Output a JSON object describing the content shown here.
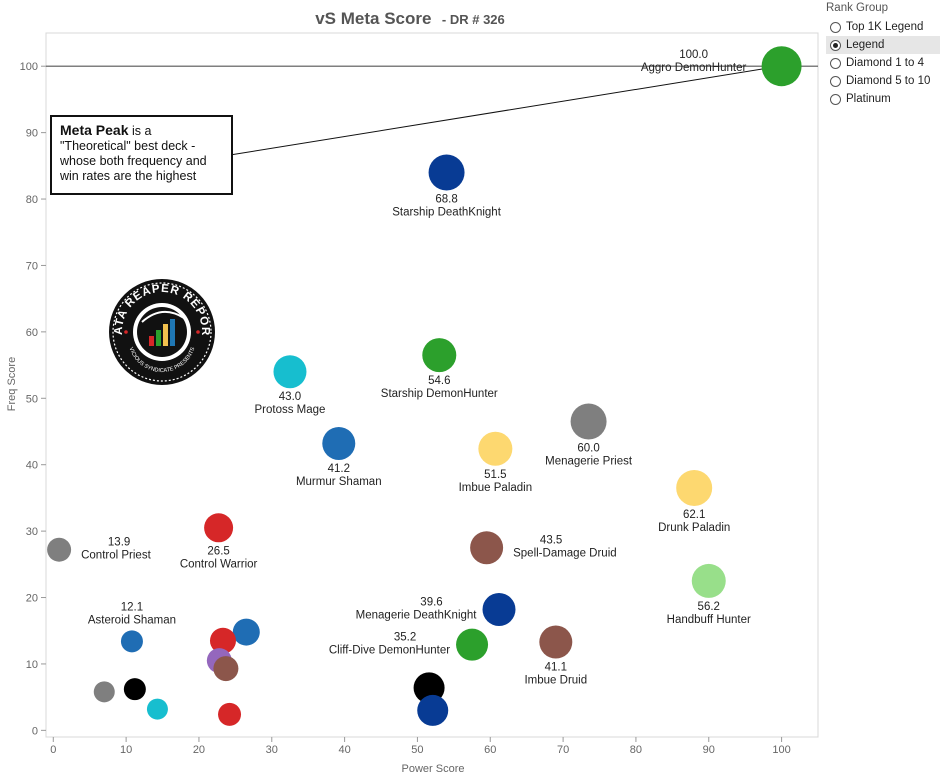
{
  "title": "vS Meta Score",
  "subtitle": "- DR # 326",
  "legend": {
    "title": "Rank Group",
    "items": [
      "Top 1K Legend",
      "Legend",
      "Diamond 1 to 4",
      "Diamond 5 to 10",
      "Platinum"
    ],
    "selected_index": 1
  },
  "annotation": {
    "bold": "Meta Peak",
    "text": " is a \"Theoretical\" best deck - whose both frequency and win rates are the highest"
  },
  "logo": {
    "text_top": "DATA REAPER REPORT",
    "text_bottom": "VICIOUS SYNDICATE PRESENTS"
  },
  "chart_data": {
    "type": "scatter",
    "title": "vS Meta Score",
    "xlabel": "Power Score",
    "ylabel": "Freq Score",
    "xlim": [
      -1,
      105
    ],
    "ylim": [
      -1,
      105
    ],
    "xticks": [
      0,
      10,
      20,
      30,
      40,
      50,
      60,
      70,
      80,
      90,
      100
    ],
    "yticks": [
      0,
      10,
      20,
      30,
      40,
      50,
      60,
      70,
      80,
      90,
      100
    ],
    "reference_line_y": 100,
    "grid": false,
    "points": [
      {
        "name": "Aggro DemonHunter",
        "score": "100.0",
        "x": 100,
        "y": 100,
        "size": 20,
        "color": "#2ca02c",
        "label": "above-left"
      },
      {
        "name": "Starship DeathKnight",
        "score": "68.8",
        "x": 54,
        "y": 84,
        "size": 18,
        "color": "#083b94",
        "label": "below"
      },
      {
        "name": "Starship DemonHunter",
        "score": "54.6",
        "x": 53,
        "y": 56.5,
        "size": 17,
        "color": "#2ca02c",
        "label": "below"
      },
      {
        "name": "Protoss Mage",
        "score": "43.0",
        "x": 32.5,
        "y": 54,
        "size": 16.5,
        "color": "#17becf",
        "label": "below"
      },
      {
        "name": "Murmur Shaman",
        "score": "41.2",
        "x": 39.2,
        "y": 43.2,
        "size": 16.5,
        "color": "#1f6db4",
        "label": "below"
      },
      {
        "name": "Imbue Paladin",
        "score": "51.5",
        "x": 60.7,
        "y": 42.4,
        "size": 17,
        "color": "#fdd870",
        "label": "below"
      },
      {
        "name": "Menagerie Priest",
        "score": "60.0",
        "x": 73.5,
        "y": 46.5,
        "size": 18,
        "color": "#7f7f7f",
        "label": "below"
      },
      {
        "name": "Drunk Paladin",
        "score": "62.1",
        "x": 88,
        "y": 36.5,
        "size": 18,
        "color": "#fdd870",
        "label": "below"
      },
      {
        "name": "Control Warrior",
        "score": "26.5",
        "x": 22.7,
        "y": 30.5,
        "size": 14.5,
        "color": "#d62728",
        "label": "below"
      },
      {
        "name": "Control Priest",
        "score": "13.9",
        "x": 0.8,
        "y": 27.2,
        "size": 12,
        "color": "#7f7f7f",
        "label": "right"
      },
      {
        "name": "Spell-Damage Druid",
        "score": "43.5",
        "x": 59.5,
        "y": 27.5,
        "size": 16.5,
        "color": "#8c564b",
        "label": "right"
      },
      {
        "name": "Handbuff Hunter",
        "score": "56.2",
        "x": 90,
        "y": 22.5,
        "size": 17,
        "color": "#98df8a",
        "label": "below"
      },
      {
        "name": "Asteroid Shaman",
        "score": "12.1",
        "x": 10.8,
        "y": 13.4,
        "size": 11,
        "color": "#1f6db4",
        "label": "above"
      },
      {
        "name": "Menagerie DeathKnight",
        "score": "39.6",
        "x": 61.2,
        "y": 18.2,
        "size": 16.5,
        "color": "#083b94",
        "label": "left"
      },
      {
        "name": "Cliff-Dive DemonHunter",
        "score": "35.2",
        "x": 57.5,
        "y": 12.9,
        "size": 16,
        "color": "#2ca02c",
        "label": "left"
      },
      {
        "name": "Imbue Druid",
        "score": "41.1",
        "x": 69,
        "y": 13.3,
        "size": 16.5,
        "color": "#8c564b",
        "label": "below"
      },
      {
        "name": "",
        "score": "",
        "x": 26.5,
        "y": 14.8,
        "size": 13.5,
        "color": "#1f6db4",
        "label": "none"
      },
      {
        "name": "",
        "score": "",
        "x": 23.3,
        "y": 13.5,
        "size": 13,
        "color": "#d62728",
        "label": "none"
      },
      {
        "name": "",
        "score": "",
        "x": 22.8,
        "y": 10.5,
        "size": 12.5,
        "color": "#9467bd",
        "label": "none"
      },
      {
        "name": "",
        "score": "",
        "x": 23.7,
        "y": 9.3,
        "size": 12.5,
        "color": "#8c564b",
        "label": "none"
      },
      {
        "name": "",
        "score": "",
        "x": 24.2,
        "y": 2.4,
        "size": 11.5,
        "color": "#d62728",
        "label": "none"
      },
      {
        "name": "",
        "score": "",
        "x": 7,
        "y": 5.8,
        "size": 10.5,
        "color": "#7f7f7f",
        "label": "none"
      },
      {
        "name": "",
        "score": "",
        "x": 11.2,
        "y": 6.2,
        "size": 11,
        "color": "#000000",
        "label": "none"
      },
      {
        "name": "",
        "score": "",
        "x": 14.3,
        "y": 3.2,
        "size": 10.5,
        "color": "#17becf",
        "label": "none"
      },
      {
        "name": "",
        "score": "",
        "x": 51.6,
        "y": 6.4,
        "size": 15.5,
        "color": "#000000",
        "label": "none"
      },
      {
        "name": "",
        "score": "",
        "x": 52.1,
        "y": 3.0,
        "size": 15.5,
        "color": "#083b94",
        "label": "none"
      }
    ]
  }
}
